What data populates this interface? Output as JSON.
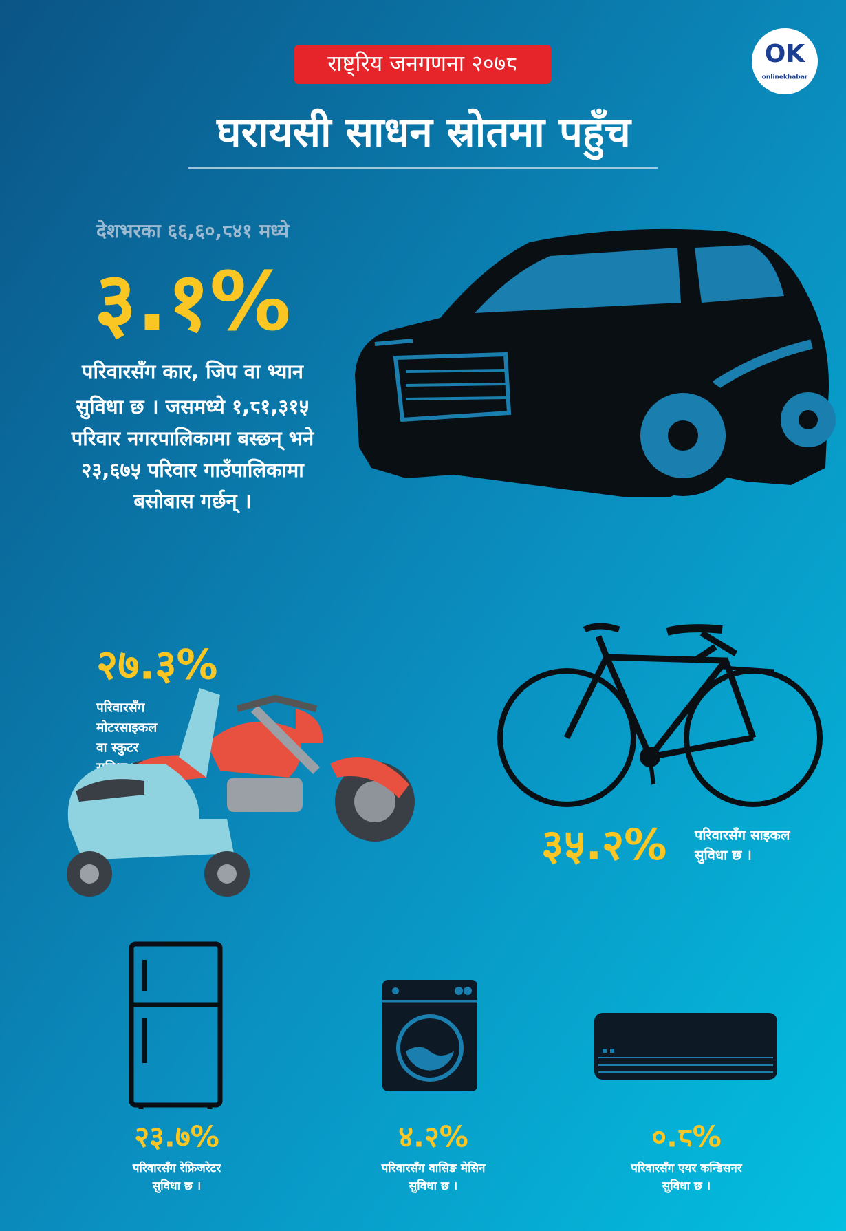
{
  "header": {
    "badge": "राष्ट्रिय जनगणना २०७८",
    "title": "घरायसी साधन स्रोतमा पहुँच"
  },
  "logo": {
    "mark": "OK",
    "text": "onlinekhabar"
  },
  "car": {
    "intro": "देशभरका ६६,६०,८४१ मध्ये",
    "percent": "३.१%",
    "description": [
      "परिवारसँग कार, जिप वा भ्यान",
      "सुविधा छ । जसमध्ये १,८१,३१५",
      "परिवार नगरपालिकामा बस्छन् भने",
      "२३,६७५ परिवार गाउँपालिकामा",
      "बसोबास गर्छन् ।"
    ]
  },
  "motorcycle": {
    "percent": "२७.३%",
    "caption": [
      "परिवारसँग",
      "मोटरसाइकल",
      "वा स्कुटर",
      "सुविधा छ ।"
    ]
  },
  "bicycle": {
    "percent": "३५.२%",
    "caption": [
      "परिवारसँग साइकल",
      "सुविधा छ ।"
    ]
  },
  "appliances": [
    {
      "percent": "२३.७%",
      "caption": [
        "परिवारसँग रेफ्रिजरेटर",
        "सुविधा छ ।"
      ]
    },
    {
      "percent": "४.२%",
      "caption": [
        "परिवारसँग वासिङ मेसिन",
        "सुविधा छ ।"
      ]
    },
    {
      "percent": "०.८%",
      "caption": [
        "परिवारसँग एयर कन्डिसनर",
        "सुविधा छ ।"
      ]
    }
  ]
}
